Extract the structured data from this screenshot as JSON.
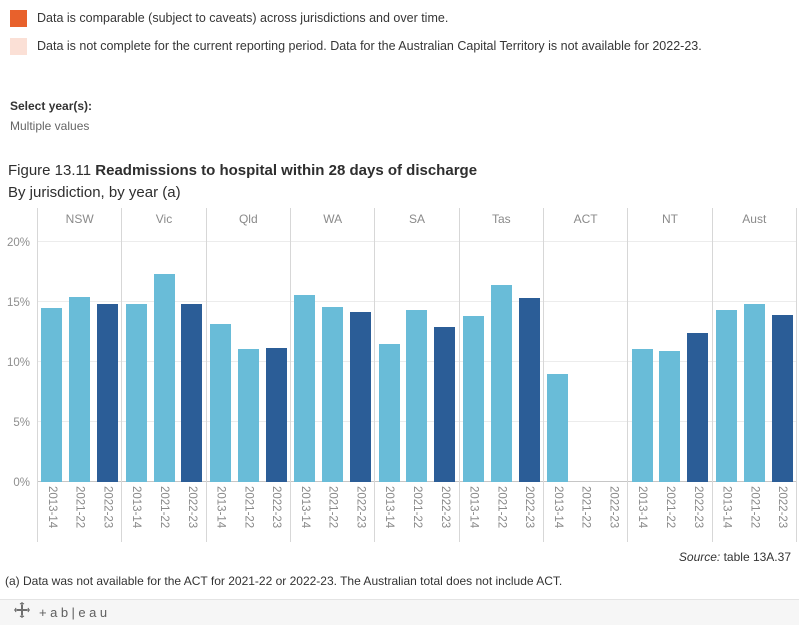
{
  "legend": {
    "items": [
      {
        "color": "#e8612c",
        "label": "Data is comparable (subject to caveats) across jurisdictions and over time."
      },
      {
        "color": "#fbe0d6",
        "label": "Data is not complete for the current reporting period. Data for the Australian Capital Territory is not available for 2022-23."
      }
    ]
  },
  "filter": {
    "label": "Select year(s):",
    "value": "Multiple values"
  },
  "title": {
    "prefix": "Figure 13.11 ",
    "main": "Readmissions to hospital within 28 days of discharge",
    "subtitle": "By jurisdiction, by year (a)"
  },
  "chart_data": {
    "type": "bar",
    "title": "Figure 13.11 Readmissions to hospital within 28 days of discharge",
    "subtitle": "By jurisdiction, by year (a)",
    "categories": [
      "NSW",
      "Vic",
      "Qld",
      "WA",
      "SA",
      "Tas",
      "ACT",
      "NT",
      "Aust"
    ],
    "series": [
      {
        "name": "2013-14",
        "color": "#69bcd8",
        "values": [
          14.5,
          14.8,
          13.2,
          15.6,
          11.5,
          13.8,
          9.0,
          11.1,
          14.3
        ]
      },
      {
        "name": "2021-22",
        "color": "#69bcd8",
        "values": [
          15.4,
          17.3,
          11.1,
          14.6,
          14.3,
          16.4,
          null,
          10.9,
          14.8
        ]
      },
      {
        "name": "2022-23",
        "color": "#2b5d97",
        "values": [
          14.8,
          14.8,
          11.2,
          14.2,
          12.9,
          15.3,
          null,
          12.4,
          13.9
        ]
      }
    ],
    "ylabel": "",
    "ylim": [
      0,
      20
    ],
    "yticks": [
      {
        "label": "20%",
        "value": 20
      },
      {
        "label": "15%",
        "value": 15
      },
      {
        "label": "10%",
        "value": 10
      },
      {
        "label": "5%",
        "value": 5
      },
      {
        "label": "0%",
        "value": 0
      }
    ],
    "grid": "horizontal",
    "legend_position": "none"
  },
  "source": {
    "italic": "Source:",
    "text": " table 13A.37"
  },
  "footnote": "(a) Data was not available for the ACT for 2021-22 or 2022-23. The Australian total does not include ACT.",
  "footer": {
    "wordmark": "+ab|eau"
  }
}
